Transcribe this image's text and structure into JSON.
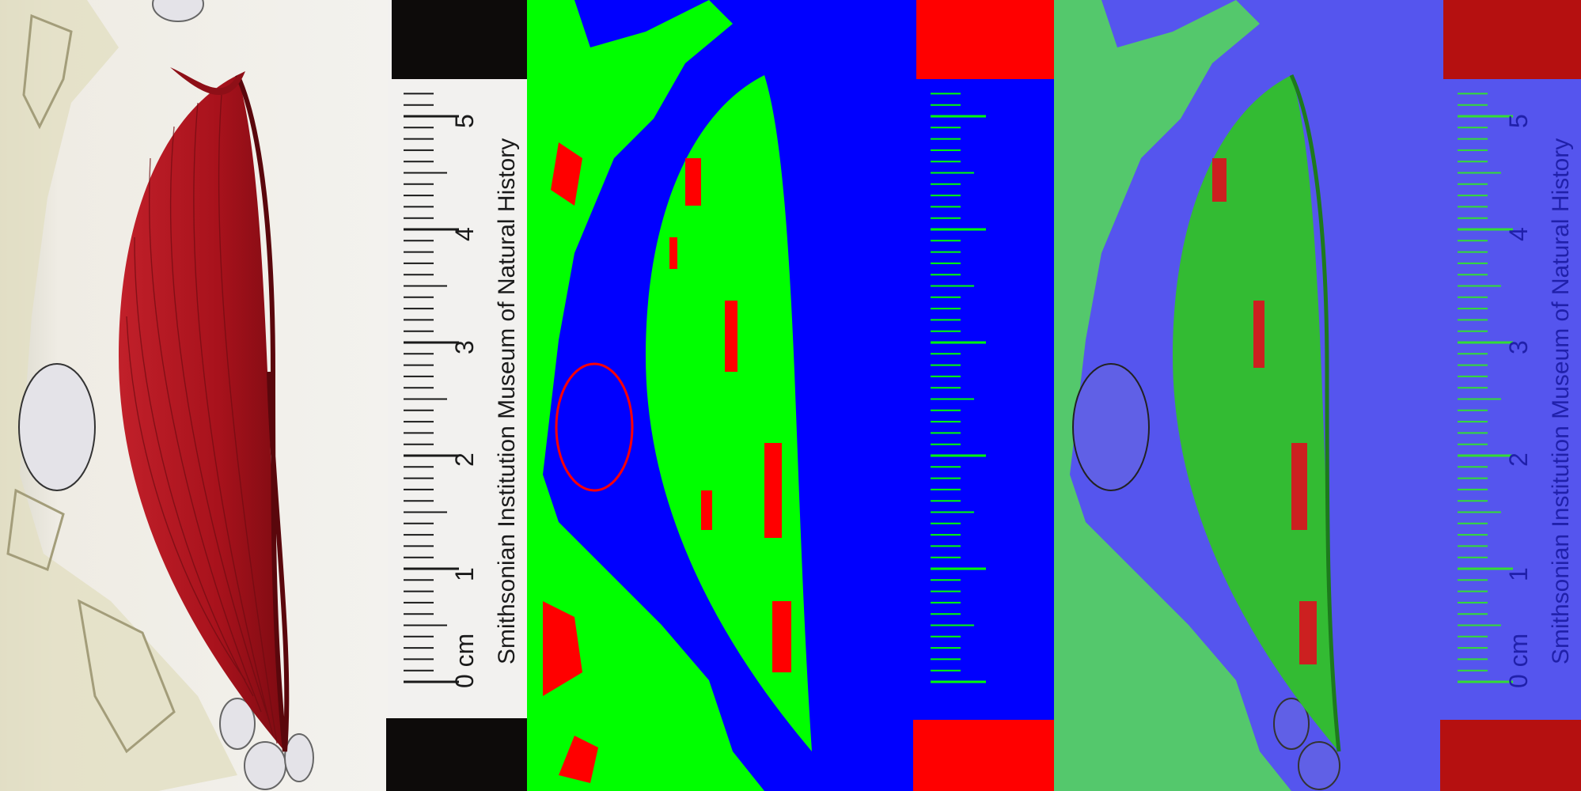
{
  "scale": {
    "ticks": [
      "0 cm",
      "1",
      "2",
      "3",
      "4",
      "5"
    ]
  },
  "caption": "Smithsonian Institution Museum of Natural History",
  "colors": {
    "specimen_red": "#b3141e",
    "specimen_dark": "#6e0c12",
    "slide_bg": "#ecebe2",
    "mask_blue": "#0000ff",
    "mask_green": "#00ff00",
    "mask_red": "#ff0000",
    "overlay_blue": "#5555ee",
    "overlay_green": "#33cc33"
  }
}
